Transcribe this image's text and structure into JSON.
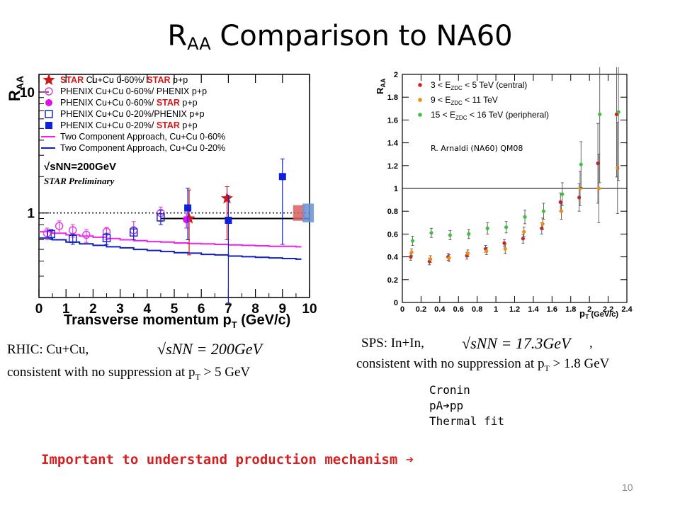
{
  "slide": {
    "title_main": "R",
    "title_sub": "AA",
    "title_rest": " Comparison to NA60",
    "page_number": "10",
    "important": "Important to understand production mechanism ➔"
  },
  "captions": {
    "rhic_line1": "RHIC: Cu+Cu,",
    "rhic_formula": "√sNN = 200GeV",
    "rhic_line2_pre": "consistent with no suppression at p",
    "rhic_line2_sub": "T",
    "rhic_line2_post": " > 5 GeV",
    "sps_line1": "SPS:   In+In,",
    "sps_formula": "√sNN = 17.3GeV",
    "sps_comma": ",",
    "sps_line2_pre": "consistent with no suppression at p",
    "sps_line2_sub": "T",
    "sps_line2_post": " > 1.8 GeV"
  },
  "notes": [
    "Cronin",
    "pA➔pp",
    "Thermal fit"
  ],
  "chart_data": [
    {
      "type": "scatter",
      "xlabel": "Transverse momentum p",
      "xlabel_sub": "T",
      "xlabel_unit": " (GeV/c)",
      "ylabel": "R",
      "ylabel_sub": "AA",
      "yscale": "log",
      "xlim": [
        0,
        10
      ],
      "ylim": [
        0.2,
        14
      ],
      "x_ticks": [
        "0",
        "1",
        "2",
        "3",
        "4",
        "5",
        "6",
        "7",
        "8",
        "9",
        "10"
      ],
      "y_ticks": [
        {
          "v": 1,
          "label": "1"
        },
        {
          "v": 10,
          "label": "10"
        }
      ],
      "energy_label": "√sNN=200GeV",
      "preliminary": "STAR Preliminary",
      "legend": [
        {
          "marker": "star",
          "color": "#d01818",
          "parts": [
            {
              "t": "STAR",
              "bold": true,
              "color": "#d01818"
            },
            {
              "t": " Cu+Cu 0-60%/ "
            },
            {
              "t": "STAR",
              "bold": true,
              "color": "#d01818"
            },
            {
              "t": " p+p"
            }
          ]
        },
        {
          "marker": "circle-open",
          "color": "#e040e0",
          "parts": [
            {
              "t": "PHENIX Cu+Cu 0-60%/ PHENIX p+p"
            }
          ]
        },
        {
          "marker": "circle",
          "color": "#e010e0",
          "parts": [
            {
              "t": "PHENIX Cu+Cu 0-60%/ "
            },
            {
              "t": "STAR",
              "bold": true,
              "color": "#d01818"
            },
            {
              "t": " p+p"
            }
          ]
        },
        {
          "marker": "square-open",
          "color": "#1828c8",
          "parts": [
            {
              "t": "PHENIX Cu+Cu 0-20%/PHENIX p+p"
            }
          ]
        },
        {
          "marker": "square",
          "color": "#1020d8",
          "parts": [
            {
              "t": "PHENIX Cu+Cu 0-20%/ "
            },
            {
              "t": "STAR",
              "bold": true,
              "color": "#d01818"
            },
            {
              "t": " p+p"
            }
          ]
        },
        {
          "marker": "line",
          "color": "#f020f0",
          "parts": [
            {
              "t": "Two Component Approach, Cu+Cu 0-60%"
            }
          ]
        },
        {
          "marker": "line",
          "color": "#1020c0",
          "parts": [
            {
              "t": "Two Component Approach, Cu+Cu 0-20%"
            }
          ]
        }
      ],
      "series": [
        {
          "name": "STAR Cu+Cu 0-60%/ STAR p+p",
          "marker": "star",
          "color": "#d01818",
          "points": [
            {
              "x": 5.55,
              "y": 0.9,
              "lo": 0.45,
              "hi": 1.55
            },
            {
              "x": 6.95,
              "y": 1.32,
              "lo": 0.6,
              "hi": 1.65
            }
          ]
        },
        {
          "name": "PHENIX Cu+Cu 0-60%/ PHENIX p+p",
          "marker": "circle-open",
          "color": "#e040e0",
          "points": [
            {
              "x": 0.3,
              "y": 0.68,
              "lo": 0.6,
              "hi": 0.75
            },
            {
              "x": 0.75,
              "y": 0.78,
              "lo": 0.68,
              "hi": 0.86
            },
            {
              "x": 1.25,
              "y": 0.72,
              "lo": 0.63,
              "hi": 0.8
            },
            {
              "x": 1.75,
              "y": 0.66,
              "lo": 0.57,
              "hi": 0.73
            },
            {
              "x": 2.5,
              "y": 0.7,
              "lo": 0.6,
              "hi": 0.76
            },
            {
              "x": 3.5,
              "y": 0.72,
              "lo": 0.6,
              "hi": 0.85
            },
            {
              "x": 4.5,
              "y": 1.0,
              "lo": 0.85,
              "hi": 1.12
            }
          ]
        },
        {
          "name": "PHENIX Cu+Cu 0-60%/ STAR p+p",
          "marker": "circle",
          "color": "#e010e0",
          "points": [
            {
              "x": 5.45,
              "y": 0.88,
              "lo": 0.75,
              "hi": 1.0
            }
          ]
        },
        {
          "name": "PHENIX Cu+Cu 0-20%/PHENIX p+p",
          "marker": "square-open",
          "color": "#1828c8",
          "points": [
            {
              "x": 0.45,
              "y": 0.67,
              "lo": 0.6,
              "hi": 0.73
            },
            {
              "x": 1.25,
              "y": 0.61,
              "lo": 0.55,
              "hi": 0.67
            },
            {
              "x": 2.5,
              "y": 0.62,
              "lo": 0.55,
              "hi": 0.68
            },
            {
              "x": 3.5,
              "y": 0.69,
              "lo": 0.6,
              "hi": 0.76
            },
            {
              "x": 4.5,
              "y": 0.92,
              "lo": 0.8,
              "hi": 1.05
            }
          ]
        },
        {
          "name": "PHENIX Cu+Cu 0-20%/ STAR p+p",
          "marker": "square",
          "color": "#1020d8",
          "points": [
            {
              "x": 5.5,
              "y": 1.1,
              "lo": 0.6,
              "hi": 1.6
            },
            {
              "x": 7.0,
              "y": 0.87,
              "lo": 0.18,
              "hi": 1.4
            },
            {
              "x": 9.0,
              "y": 2.0,
              "lo": 0.55,
              "hi": 2.8
            }
          ]
        }
      ],
      "curves": [
        {
          "name": "Two Component Approach, Cu+Cu 0-60%",
          "color": "#f020f0",
          "x": [
            0,
            0.5,
            1,
            1.5,
            2,
            2.5,
            3,
            3.5,
            4,
            4.5,
            5,
            5.5,
            6,
            6.5,
            7,
            7.5,
            8,
            8.5,
            9,
            9.5
          ],
          "y": [
            0.7,
            0.68,
            0.66,
            0.645,
            0.63,
            0.615,
            0.6,
            0.59,
            0.58,
            0.575,
            0.565,
            0.56,
            0.555,
            0.55,
            0.545,
            0.54,
            0.535,
            0.53,
            0.53,
            0.525
          ]
        },
        {
          "name": "Two Component Approach, Cu+Cu 0-20%",
          "color": "#1020c0",
          "x": [
            0,
            0.5,
            1,
            1.5,
            2,
            2.5,
            3,
            3.5,
            4,
            4.5,
            5,
            5.5,
            6,
            6.5,
            7,
            7.5,
            8,
            8.5,
            9,
            9.5
          ],
          "y": [
            0.62,
            0.6,
            0.575,
            0.555,
            0.54,
            0.525,
            0.515,
            0.5,
            0.49,
            0.48,
            0.47,
            0.465,
            0.455,
            0.45,
            0.44,
            0.435,
            0.43,
            0.425,
            0.42,
            0.415
          ]
        }
      ],
      "reference_lines": [
        {
          "y": 1,
          "style": "dotted"
        }
      ],
      "horizontal_segment": {
        "x0": 4.5,
        "x1": 10.0,
        "y": 0.9
      },
      "norm_boxes": [
        {
          "x": 9.6,
          "y": 1.0,
          "height_frac": 0.1,
          "color": "#d66060"
        },
        {
          "x": 9.95,
          "y": 1.0,
          "height_frac": 0.12,
          "color": "#6a8fd6"
        }
      ]
    },
    {
      "type": "scatter",
      "xlabel": "p",
      "xlabel_sub": "T",
      "xlabel_unit": " (GeV/c)",
      "ylabel": "R",
      "ylabel_sub": "AA",
      "xlim": [
        0,
        2.4
      ],
      "ylim": [
        0,
        2
      ],
      "x_ticks": [
        "0",
        "0.2",
        "0.4",
        "0.6",
        "0.8",
        "1",
        "1.2",
        "1.4",
        "1.6",
        "1.8",
        "2",
        "2.2",
        "2.4"
      ],
      "y_ticks": [
        "0",
        "0.2",
        "0.4",
        "0.6",
        "0.8",
        "1",
        "1.2",
        "1.4",
        "1.6",
        "1.8",
        "2"
      ],
      "annotation": "R. Arnaldi (NA60) QM08",
      "reference_lines": [
        {
          "y": 1,
          "style": "solid"
        }
      ],
      "series": [
        {
          "name": "3 < EZDC < 5 TeV (central)",
          "label_main": "3 < E",
          "label_sub": "ZDC",
          "label_rest": " < 5 TeV (central)",
          "color": "#d42020",
          "x": [
            0.1,
            0.3,
            0.5,
            0.7,
            0.9,
            1.1,
            1.3,
            1.5,
            1.7,
            1.9,
            2.1,
            2.3
          ],
          "y": [
            0.4,
            0.36,
            0.4,
            0.41,
            0.47,
            0.52,
            0.56,
            0.65,
            0.88,
            0.92,
            1.22,
            1.65
          ],
          "err": [
            0.03,
            0.03,
            0.03,
            0.03,
            0.03,
            0.03,
            0.04,
            0.05,
            0.08,
            0.12,
            0.35,
            0.55
          ]
        },
        {
          "name": "9 < EZDC < 11 TeV",
          "label_main": "9 < E",
          "label_sub": "ZDC",
          "label_rest": " < 11 TeV",
          "color": "#f08c10",
          "x": [
            0.1,
            0.3,
            0.5,
            0.7,
            0.9,
            1.1,
            1.3,
            1.5,
            1.7,
            1.9,
            2.1,
            2.3
          ],
          "y": [
            0.44,
            0.38,
            0.39,
            0.43,
            0.45,
            0.47,
            0.62,
            0.69,
            0.8,
            1.0,
            1.0,
            1.18
          ],
          "err": [
            0.03,
            0.03,
            0.03,
            0.03,
            0.03,
            0.04,
            0.04,
            0.05,
            0.07,
            0.15,
            0.3,
            0.4
          ]
        },
        {
          "name": "15 < EZDC < 16 TeV (peripheral)",
          "label_main": "15 < E",
          "label_sub": "ZDC",
          "label_rest": " < 16 TeV (peripheral)",
          "color": "#40c040",
          "x": [
            0.1,
            0.3,
            0.5,
            0.7,
            0.9,
            1.1,
            1.3,
            1.5,
            1.7,
            1.9,
            2.1,
            2.3
          ],
          "y": [
            0.54,
            0.61,
            0.59,
            0.6,
            0.65,
            0.66,
            0.75,
            0.8,
            0.95,
            1.21,
            1.65,
            1.67
          ],
          "err": [
            0.04,
            0.04,
            0.04,
            0.04,
            0.05,
            0.05,
            0.06,
            0.07,
            0.1,
            0.2,
            0.6,
            0.6
          ]
        }
      ]
    }
  ]
}
